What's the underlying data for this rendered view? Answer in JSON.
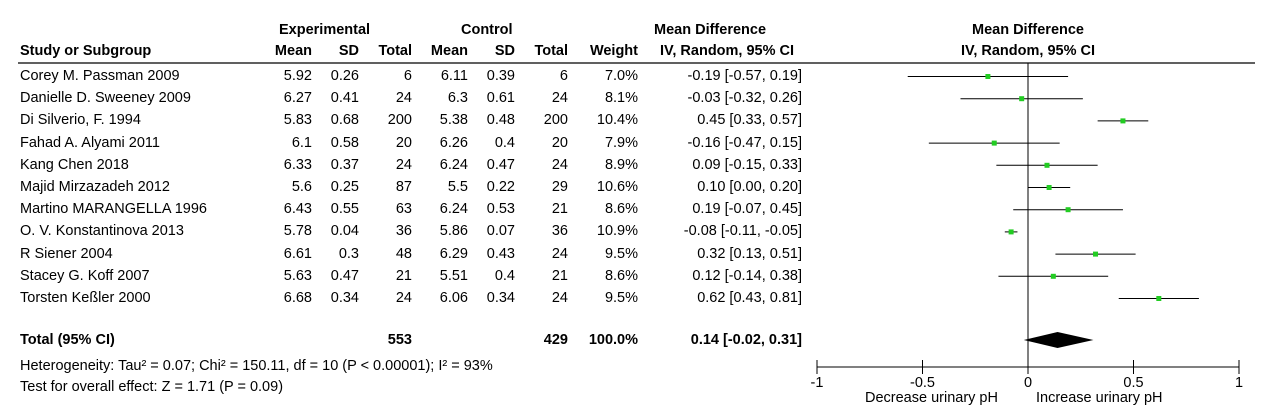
{
  "header": {
    "group_experimental": "Experimental",
    "group_control": "Control",
    "effect_title_left": "Mean Difference",
    "effect_title_right": "Mean Difference",
    "columns": [
      "Study or Subgroup",
      "Mean",
      "SD",
      "Total",
      "Mean",
      "SD",
      "Total",
      "Weight",
      "IV, Random, 95% CI"
    ],
    "plot_subtitle": "IV, Random, 95% CI"
  },
  "studies": [
    {
      "name": "Corey M. Passman  2009",
      "e_mean": "5.92",
      "e_sd": "0.26",
      "e_total": "6",
      "c_mean": "6.11",
      "c_sd": "0.39",
      "c_total": "6",
      "weight": "7.0%",
      "ci_text": "-0.19 [-0.57, 0.19]"
    },
    {
      "name": "Danielle D. Sweeney  2009",
      "e_mean": "6.27",
      "e_sd": "0.41",
      "e_total": "24",
      "c_mean": "6.3",
      "c_sd": "0.61",
      "c_total": "24",
      "weight": "8.1%",
      "ci_text": "-0.03 [-0.32, 0.26]"
    },
    {
      "name": "Di Silverio, F. 1994",
      "e_mean": "5.83",
      "e_sd": "0.68",
      "e_total": "200",
      "c_mean": "5.38",
      "c_sd": "0.48",
      "c_total": "200",
      "weight": "10.4%",
      "ci_text": "0.45 [0.33, 0.57]"
    },
    {
      "name": "Fahad A. Alyami  2011",
      "e_mean": "6.1",
      "e_sd": "0.58",
      "e_total": "20",
      "c_mean": "6.26",
      "c_sd": "0.4",
      "c_total": "20",
      "weight": "7.9%",
      "ci_text": "-0.16 [-0.47, 0.15]"
    },
    {
      "name": "Kang Chen  2018",
      "e_mean": "6.33",
      "e_sd": "0.37",
      "e_total": "24",
      "c_mean": "6.24",
      "c_sd": "0.47",
      "c_total": "24",
      "weight": "8.9%",
      "ci_text": "0.09 [-0.15, 0.33]"
    },
    {
      "name": "Majid Mirzazadeh 2012",
      "e_mean": "5.6",
      "e_sd": "0.25",
      "e_total": "87",
      "c_mean": "5.5",
      "c_sd": "0.22",
      "c_total": "29",
      "weight": "10.6%",
      "ci_text": "0.10 [0.00, 0.20]"
    },
    {
      "name": "Martino MARANGELLA  1996",
      "e_mean": "6.43",
      "e_sd": "0.55",
      "e_total": "63",
      "c_mean": "6.24",
      "c_sd": "0.53",
      "c_total": "21",
      "weight": "8.6%",
      "ci_text": "0.19 [-0.07, 0.45]"
    },
    {
      "name": "O. V. Konstantinova  2013",
      "e_mean": "5.78",
      "e_sd": "0.04",
      "e_total": "36",
      "c_mean": "5.86",
      "c_sd": "0.07",
      "c_total": "36",
      "weight": "10.9%",
      "ci_text": "-0.08 [-0.11, -0.05]"
    },
    {
      "name": "R Siener  2004",
      "e_mean": "6.61",
      "e_sd": "0.3",
      "e_total": "48",
      "c_mean": "6.29",
      "c_sd": "0.43",
      "c_total": "24",
      "weight": "9.5%",
      "ci_text": "0.32 [0.13, 0.51]"
    },
    {
      "name": "Stacey G. Koff  2007",
      "e_mean": "5.63",
      "e_sd": "0.47",
      "e_total": "21",
      "c_mean": "5.51",
      "c_sd": "0.4",
      "c_total": "21",
      "weight": "8.6%",
      "ci_text": "0.12 [-0.14, 0.38]"
    },
    {
      "name": "Torsten Keßler  2000",
      "e_mean": "6.68",
      "e_sd": "0.34",
      "e_total": "24",
      "c_mean": "6.06",
      "c_sd": "0.34",
      "c_total": "24",
      "weight": "9.5%",
      "ci_text": "0.62 [0.43, 0.81]"
    }
  ],
  "total": {
    "label": "Total (95% CI)",
    "e_total": "553",
    "c_total": "429",
    "weight": "100.0%",
    "ci_text": "0.14 [-0.02, 0.31]"
  },
  "heterogeneity": "Heterogeneity: Tau² = 0.07; Chi² = 150.11, df = 10 (P < 0.00001); I² = 93%",
  "overall_effect": "Test for overall effect: Z = 1.71 (P = 0.09)",
  "chart_data": {
    "type": "forest",
    "xlim": [
      -1,
      1
    ],
    "ticks": [
      {
        "value": -1,
        "label": "-1"
      },
      {
        "value": -0.5,
        "label": "-0.5"
      },
      {
        "value": 0,
        "label": "0"
      },
      {
        "value": 0.5,
        "label": "0.5"
      },
      {
        "value": 1,
        "label": "1"
      }
    ],
    "left_label": "Decrease urinary pH",
    "right_label": "Increase urinary pH",
    "points": [
      {
        "md": -0.19,
        "lo": -0.57,
        "hi": 0.19
      },
      {
        "md": -0.03,
        "lo": -0.32,
        "hi": 0.26
      },
      {
        "md": 0.45,
        "lo": 0.33,
        "hi": 0.57
      },
      {
        "md": -0.16,
        "lo": -0.47,
        "hi": 0.15
      },
      {
        "md": 0.09,
        "lo": -0.15,
        "hi": 0.33
      },
      {
        "md": 0.1,
        "lo": 0.0,
        "hi": 0.2
      },
      {
        "md": 0.19,
        "lo": -0.07,
        "hi": 0.45
      },
      {
        "md": -0.08,
        "lo": -0.11,
        "hi": -0.05
      },
      {
        "md": 0.32,
        "lo": 0.13,
        "hi": 0.51
      },
      {
        "md": 0.12,
        "lo": -0.14,
        "hi": 0.38
      },
      {
        "md": 0.62,
        "lo": 0.43,
        "hi": 0.81
      }
    ],
    "pooled": {
      "md": 0.14,
      "lo": -0.02,
      "hi": 0.31
    },
    "point_color": "#22cc22",
    "line_color": "#000000"
  }
}
